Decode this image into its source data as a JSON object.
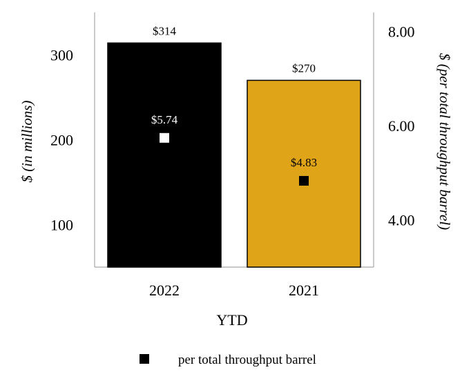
{
  "chart_data": {
    "type": "bar",
    "categories": [
      "2022",
      "2021"
    ],
    "xlabel": "YTD",
    "ylabel": "$ (in millions)",
    "y2label": "$ (per total throughput barrel)",
    "ylim": [
      50,
      350
    ],
    "y2lim": [
      3.0,
      8.4
    ],
    "yticks": [
      "100",
      "200",
      "300"
    ],
    "y2ticks": [
      "4.00",
      "6.00",
      "8.00"
    ],
    "grid": false,
    "legend_position": "bottom",
    "series": [
      {
        "values": [
          314,
          270
        ],
        "labels": [
          "$314",
          "$270"
        ],
        "colors": [
          "#000000",
          "#E0A419"
        ],
        "axis": "left",
        "kind": "bar"
      },
      {
        "name": "per total throughput barrel",
        "values": [
          5.74,
          4.83
        ],
        "labels": [
          "$5.74",
          "$4.83"
        ],
        "colors": [
          "#FFFFFF",
          "#000000"
        ],
        "axis": "right",
        "kind": "marker"
      }
    ]
  }
}
